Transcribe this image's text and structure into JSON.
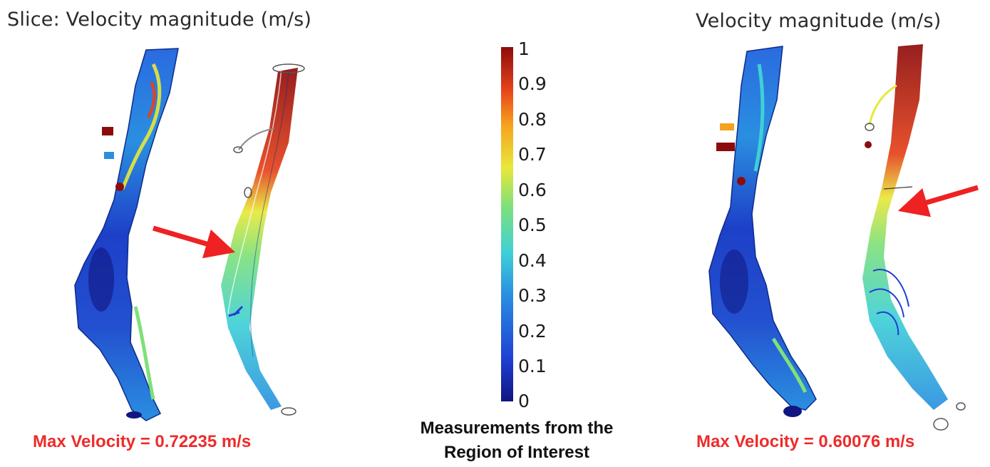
{
  "left_panel": {
    "title": "Slice: Velocity magnitude (m/s)",
    "max_velocity": "Max Velocity = 0.72235 m/s"
  },
  "right_panel": {
    "title": "Velocity magnitude (m/s)",
    "max_velocity": "Max Velocity = 0.60076 m/s"
  },
  "colorbar": {
    "ticks": [
      "1",
      "0.9",
      "0.8",
      "0.7",
      "0.6",
      "0.5",
      "0.4",
      "0.3",
      "0.2",
      "0.1",
      "0"
    ],
    "caption_line1": "Measurements from the",
    "caption_line2": "Region of Interest",
    "colors": [
      "#11157f",
      "#1f3fd4",
      "#2a8fe0",
      "#3fd0d6",
      "#7fe07a",
      "#e8e83a",
      "#f5a21e",
      "#e6421a",
      "#8c0c0c"
    ]
  },
  "colors": {
    "arrow": "#ee2222",
    "highlight_text": "#ee2b2b"
  }
}
